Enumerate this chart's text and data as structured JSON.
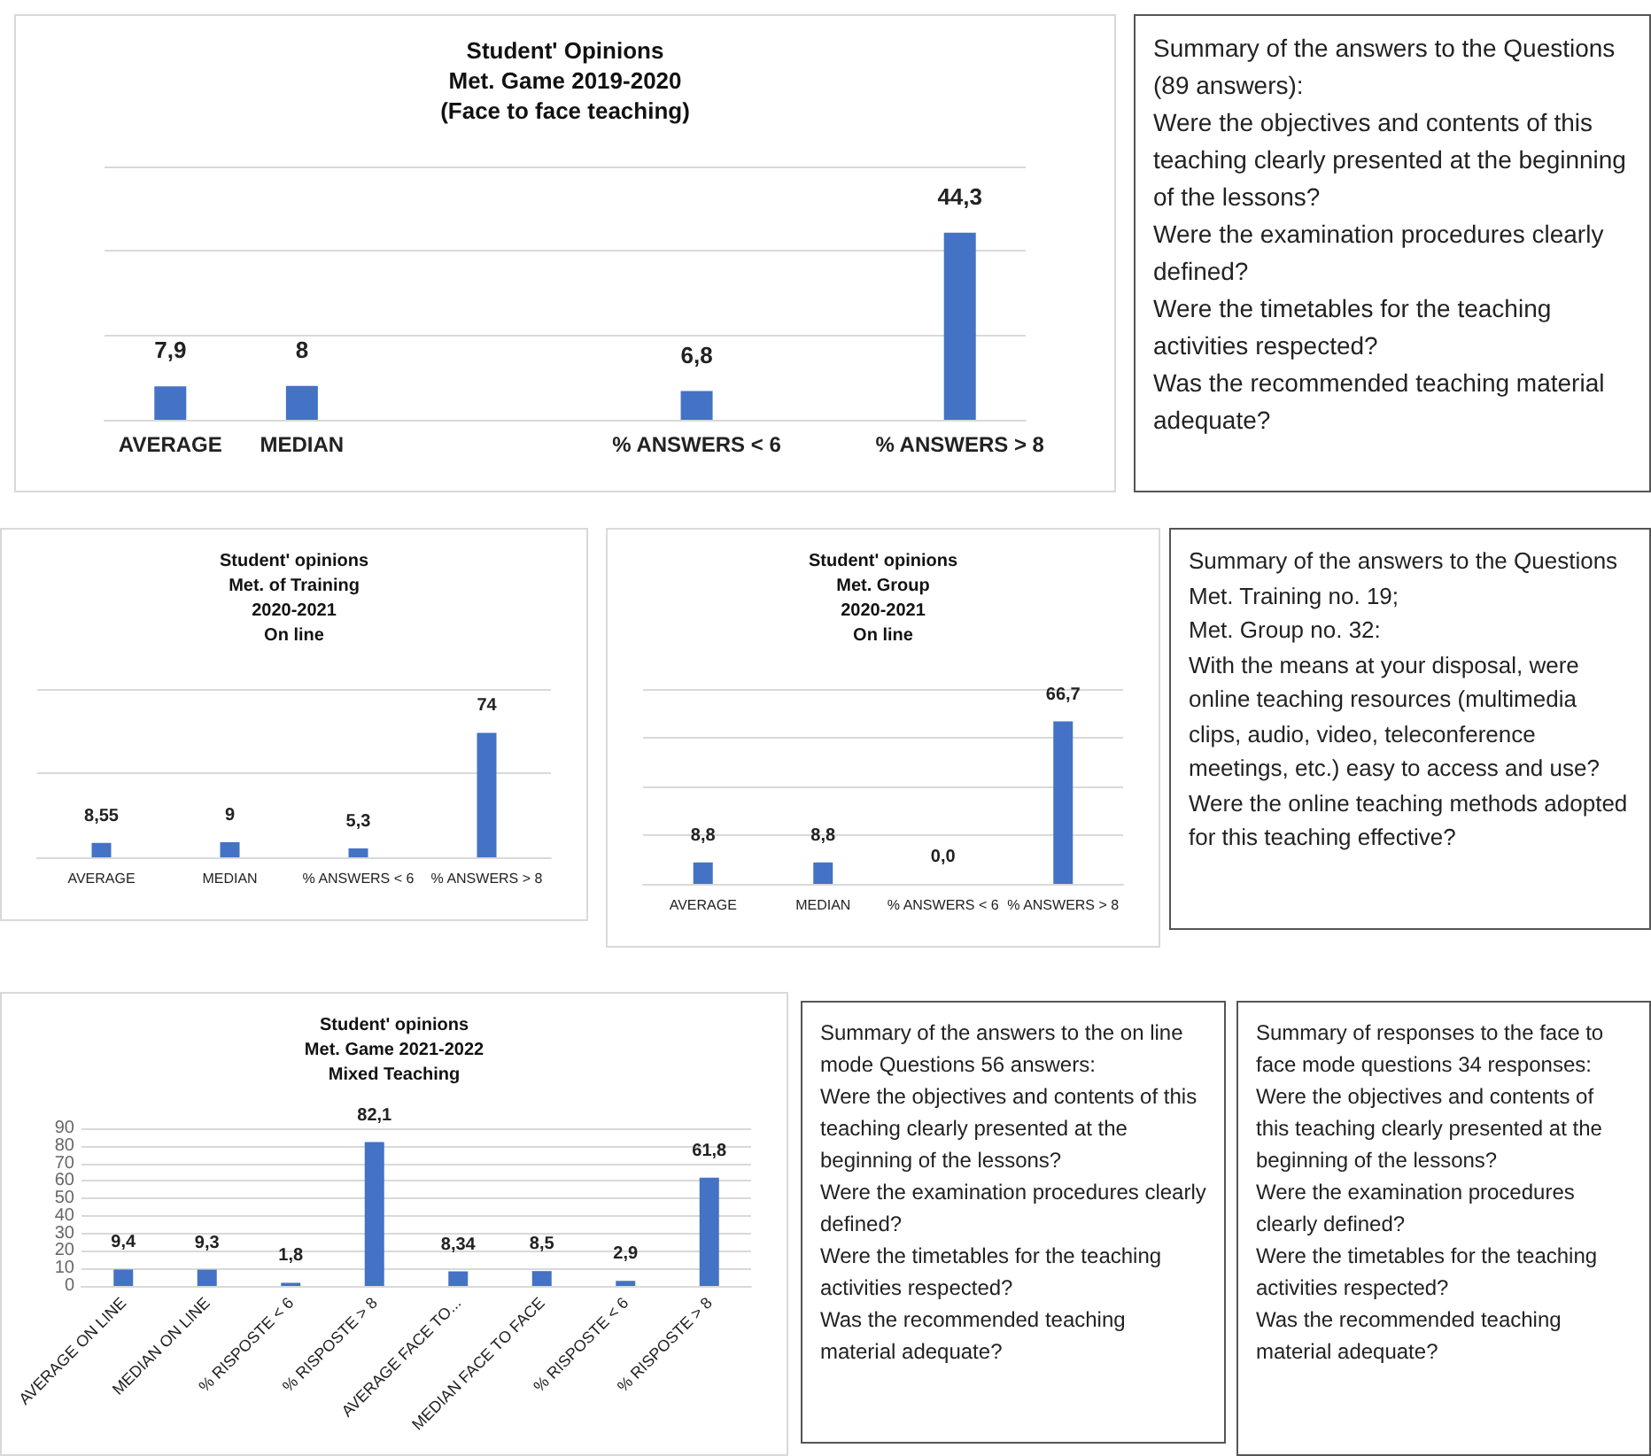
{
  "chart_data": [
    {
      "type": "bar",
      "title": "Student' Opinions\nMet. Game 2019-2020\n(Face to face teaching)",
      "categories": [
        "AVERAGE",
        "MEDIAN",
        null,
        null,
        "% ANSWERS < 6",
        null,
        "% ANSWERS > 8"
      ],
      "values": [
        7.9,
        8,
        null,
        null,
        6.8,
        null,
        44.3
      ],
      "value_labels": [
        "7,9",
        "8",
        null,
        null,
        "6,8",
        null,
        "44,3"
      ],
      "color": "#4472c4",
      "ylim": [
        0,
        60
      ],
      "yticks": [
        0,
        20,
        40,
        60
      ],
      "grid": "y",
      "tick_labels": "x"
    },
    {
      "type": "other",
      "annotations": [
        "Summary of the answers to the Questions (89 answers):",
        "Were the objectives and contents of this teaching clearly presented at the beginning of the lessons?",
        "Were the examination procedures clearly defined?",
        "Were the timetables for the teaching activities respected?",
        "Was the recommended teaching material adequate?"
      ]
    },
    {
      "type": "bar",
      "title": "Student' opinions\nMet. of Training\n2020-2021\nOn line",
      "categories": [
        "AVERAGE",
        "MEDIAN",
        "% ANSWERS < 6",
        "% ANSWERS > 8"
      ],
      "values": [
        8.55,
        9,
        5.3,
        74
      ],
      "value_labels": [
        "8,55",
        "9",
        "5,3",
        "74"
      ],
      "color": "#4472c4",
      "ylim": [
        0,
        100
      ],
      "yticks": [
        0,
        50,
        100
      ],
      "grid": "y",
      "tick_labels": "x"
    },
    {
      "type": "bar",
      "title": "Student' opinions\nMet. Group\n2020-2021\nOn line",
      "categories": [
        "AVERAGE",
        "MEDIAN",
        "% ANSWERS < 6",
        "% ANSWERS > 8"
      ],
      "values": [
        8.8,
        8.8,
        0,
        66.7
      ],
      "value_labels": [
        "8,8",
        "8,8",
        "0,0",
        "66,7"
      ],
      "color": "#4472c4",
      "ylim": [
        0,
        80
      ],
      "yticks": [
        0,
        20,
        40,
        60,
        80
      ],
      "grid": "y",
      "tick_labels": "x"
    },
    {
      "type": "other",
      "annotations": [
        "Summary of the answers to the Questions Met. Training no. 19;",
        "Met. Group no. 32:",
        "With the means at your disposal, were online teaching resources (multimedia clips, audio, video, teleconference meetings, etc.) easy to access and use?",
        "Were the online teaching methods adopted for this teaching effective?"
      ]
    },
    {
      "type": "bar",
      "title": "Student' opinions\nMet. Game 2021-2022\nMixed Teaching",
      "categories": [
        "AVERAGE ON LINE",
        "MEDIAN ON LINE",
        "% RISPOSTE < 6",
        "% RISPOSTE > 8",
        "AVERAGE FACE TO...",
        "MEDIAN FACE TO FACE",
        "% RISPOSTE < 6",
        "% RISPOSTE > 8"
      ],
      "values": [
        9.4,
        9.3,
        1.8,
        82.1,
        8.34,
        8.5,
        2.9,
        61.8
      ],
      "value_labels": [
        "9,4",
        "9,3",
        "1,8",
        "82,1",
        "8,34",
        "8,5",
        "2,9",
        "61,8"
      ],
      "color": "#4472c4",
      "ylim": [
        0,
        90
      ],
      "yticks": [
        0,
        10,
        20,
        30,
        40,
        50,
        60,
        70,
        80,
        90
      ],
      "grid": "y"
    },
    {
      "type": "other",
      "annotations": [
        "Summary of the answers to the on line mode Questions 56 answers:",
        "Were the objectives and contents of this teaching clearly presented at the beginning of the lessons?",
        "Were the examination procedures clearly defined?",
        "Were the timetables for the teaching activities respected?",
        "Was the recommended teaching material adequate?"
      ]
    },
    {
      "type": "other",
      "annotations": [
        "Summary of responses to the face to face mode questions 34 responses:",
        "Were the objectives and contents of this teaching clearly presented at the beginning of the lessons?",
        "Were the examination procedures clearly defined?",
        "Were the timetables for the teaching activities respected?",
        "Was the recommended teaching material adequate?"
      ]
    }
  ]
}
